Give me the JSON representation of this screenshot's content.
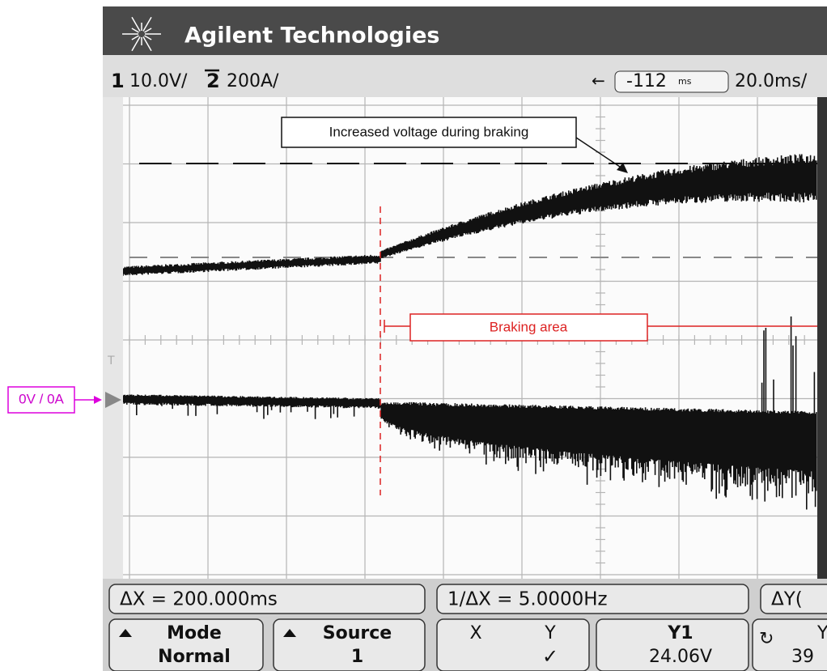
{
  "header": {
    "brand": "Agilent Technologies"
  },
  "status": {
    "channel1": "1",
    "ch1_scale": "10.0V/",
    "channel2": "2",
    "ch2_scale": "200A/",
    "delay": "-112",
    "delay_unit": "ms",
    "timebase": "20.0ms/"
  },
  "annotations": {
    "voltage": "Increased voltage during braking",
    "braking": "Braking area",
    "ground": "0V / 0A"
  },
  "measurements": [
    "ΔX = 200.000ms",
    "1/ΔX = 5.0000Hz",
    "ΔY("
  ],
  "softkeys": [
    {
      "label": "Mode",
      "value": "Normal"
    },
    {
      "label": "Source",
      "value": "1"
    },
    {
      "label": "X",
      "value": "Y"
    },
    {
      "label": "Y1",
      "value": "24.06V"
    },
    {
      "label": "Y",
      "value": "39"
    }
  ]
}
